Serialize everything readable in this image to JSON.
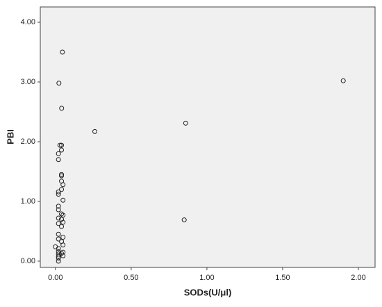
{
  "chart_data": {
    "type": "scatter",
    "x_label": "SODs(U/μl)",
    "y_label": "PBI",
    "x": [
      0.046,
      0.023,
      0.041,
      0.26,
      0.86,
      1.9,
      0.85,
      0.03,
      0.04,
      0.04,
      0.02,
      0.02,
      0.04,
      0.04,
      0.04,
      0.05,
      0.04,
      0.02,
      0.02,
      0.05,
      0.02,
      0.02,
      0.04,
      0.05,
      0.02,
      0.04,
      0.05,
      0.02,
      0.04,
      0.02,
      0.05,
      0.02,
      0.04,
      0.05,
      0.0,
      0.02,
      0.02,
      0.05,
      0.02,
      0.04,
      0.02,
      0.05,
      0.02,
      0.02
    ],
    "y": [
      3.5,
      2.98,
      2.56,
      2.17,
      2.31,
      3.02,
      0.69,
      1.94,
      1.94,
      1.86,
      1.8,
      1.7,
      1.45,
      1.43,
      1.34,
      1.28,
      1.2,
      1.16,
      1.12,
      1.02,
      0.92,
      0.86,
      0.79,
      0.77,
      0.72,
      0.7,
      0.65,
      0.63,
      0.58,
      0.45,
      0.4,
      0.37,
      0.33,
      0.27,
      0.24,
      0.21,
      0.16,
      0.15,
      0.12,
      0.13,
      0.08,
      0.09,
      0.05,
      0.0
    ],
    "xlim": [
      -0.1,
      2.11
    ],
    "ylim": [
      -0.105,
      4.256
    ],
    "xticks": [
      {
        "value": 0,
        "label": "0.00"
      },
      {
        "value": 0.5,
        "label": "0.50"
      },
      {
        "value": 1,
        "label": "1.00"
      },
      {
        "value": 1.5,
        "label": "1.50"
      },
      {
        "value": 2,
        "label": "2.00"
      }
    ],
    "yticks": [
      {
        "value": 0,
        "label": "0.00"
      },
      {
        "value": 1,
        "label": "1.00"
      },
      {
        "value": 2,
        "label": "2.00"
      },
      {
        "value": 3,
        "label": "3.00"
      },
      {
        "value": 4,
        "label": "4.00"
      }
    ],
    "marker_color": "#222222",
    "background": "#f0f0f0"
  }
}
